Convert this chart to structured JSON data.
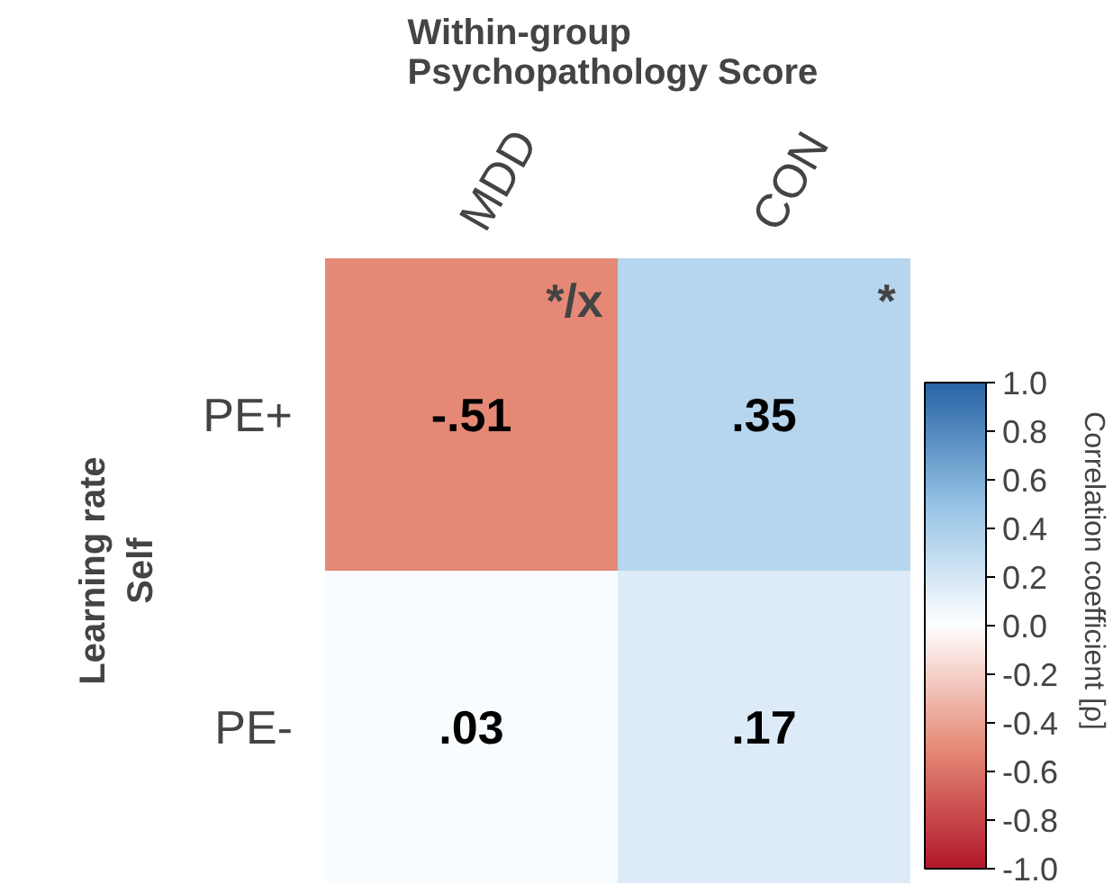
{
  "chart_data": {
    "type": "heatmap",
    "title": "Within-group\nPsychopathology  Score",
    "ylabel": "Learning rate\nSelf",
    "clabel": "Correlation coefficient [ρ]",
    "categories": [
      "MDD",
      "CON"
    ],
    "y_categories": [
      "PE+",
      "PE-"
    ],
    "cells": [
      [
        -0.51,
        0.35
      ],
      [
        0.03,
        0.17
      ]
    ],
    "cell_labels": [
      [
        "-.51",
        ".35"
      ],
      [
        ".03",
        ".17"
      ]
    ],
    "clim": [
      -1.0,
      1.0
    ],
    "cticks": [
      {
        "value": 1.0,
        "label": "1.0"
      },
      {
        "value": 0.8,
        "label": "0.8"
      },
      {
        "value": 0.6,
        "label": "0.6"
      },
      {
        "value": 0.4,
        "label": "0.4"
      },
      {
        "value": 0.2,
        "label": "0.2"
      },
      {
        "value": 0.0,
        "label": "0.0"
      },
      {
        "value": -0.2,
        "label": "-0.2"
      },
      {
        "value": -0.4,
        "label": "-0.4"
      },
      {
        "value": -0.6,
        "label": "-0.6"
      },
      {
        "value": -0.8,
        "label": "-0.8"
      },
      {
        "value": -1.0,
        "label": "-1.0"
      }
    ],
    "annotations": [
      "*/x",
      "*"
    ]
  }
}
